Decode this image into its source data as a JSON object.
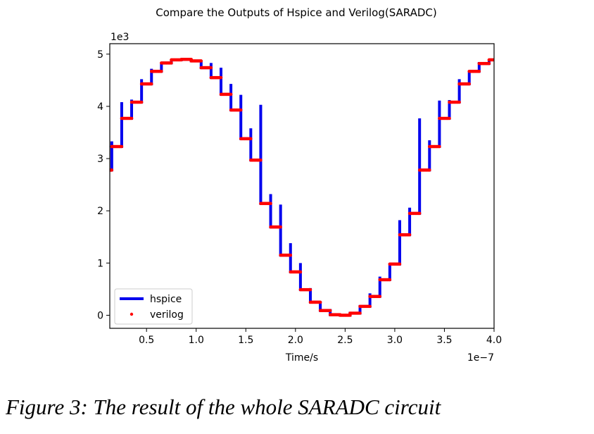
{
  "caption": "Figure 3: The result of the whole SARADC circuit",
  "chart_data": {
    "type": "line",
    "title": "Compare the Outputs of Hspice and Verilog(SARADC)",
    "xlabel": "Time/s",
    "ylabel": "",
    "x_offset_label": "1e−7",
    "y_offset_label": "1e3",
    "xlim": [
      0.13,
      4.0
    ],
    "ylim": [
      -0.25,
      5.2
    ],
    "x_ticks": [
      0.5,
      1.0,
      1.5,
      2.0,
      2.5,
      3.0,
      3.5,
      4.0
    ],
    "x_tick_labels": [
      "0.5",
      "1.0",
      "1.5",
      "2.0",
      "2.5",
      "3.0",
      "3.5",
      "4.0"
    ],
    "y_ticks": [
      0,
      1,
      2,
      3,
      4,
      5
    ],
    "y_tick_labels": [
      "0",
      "1",
      "2",
      "3",
      "4",
      "5"
    ],
    "grid": false,
    "legend_position": "lower-left",
    "colors": {
      "hspice": "#0000ee",
      "verilog": "#ff0000"
    },
    "step_starts": [
      0.13,
      0.15,
      0.25,
      0.35,
      0.45,
      0.55,
      0.65,
      0.75,
      0.85,
      0.95,
      1.05,
      1.15,
      1.25,
      1.35,
      1.45,
      1.55,
      1.65,
      1.75,
      1.85,
      1.95,
      2.05,
      2.15,
      2.25,
      2.35,
      2.45,
      2.55,
      2.65,
      2.75,
      2.85,
      2.95,
      3.05,
      3.15,
      3.25,
      3.35,
      3.45,
      3.55,
      3.65,
      3.75,
      3.85,
      3.95
    ],
    "step_levels": [
      2.78,
      3.23,
      3.77,
      4.08,
      4.43,
      4.67,
      4.83,
      4.89,
      4.9,
      4.87,
      4.74,
      4.55,
      4.23,
      3.93,
      3.38,
      2.97,
      2.14,
      1.69,
      1.15,
      0.83,
      0.49,
      0.25,
      0.09,
      0.01,
      0.0,
      0.04,
      0.17,
      0.36,
      0.68,
      0.98,
      1.54,
      1.95,
      2.78,
      3.23,
      3.77,
      4.08,
      4.43,
      4.67,
      4.82,
      4.89
    ],
    "spike_peaks": [
      3.33,
      4.08,
      4.13,
      4.52,
      4.72,
      4.84,
      4.9,
      4.91,
      4.91,
      4.88,
      4.83,
      4.74,
      4.43,
      4.22,
      3.58,
      4.03,
      2.32,
      2.12,
      1.38,
      1.0,
      0.52,
      0.27,
      0.12,
      0.02,
      0.02,
      0.1,
      0.42,
      0.74,
      1.0,
      1.82,
      2.06,
      3.77,
      3.35,
      4.11,
      4.12,
      4.52,
      4.68,
      4.85,
      4.9
    ],
    "series": [
      {
        "name": "hspice"
      },
      {
        "name": "verilog"
      }
    ]
  }
}
